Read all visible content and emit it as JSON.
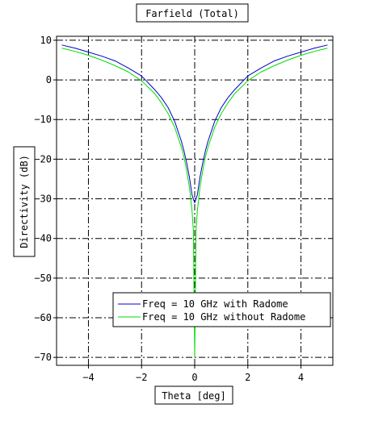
{
  "chart_data": {
    "type": "line",
    "title": "Farfield (Total)",
    "xlabel": "Theta [deg]",
    "ylabel": "Directivity (dB)",
    "xlim": [
      -5.2,
      5.2
    ],
    "ylim": [
      -72,
      11
    ],
    "x_ticks": [
      -4,
      -2,
      0,
      2,
      4
    ],
    "x_tick_labels": [
      "−4",
      "−2",
      "0",
      "2",
      "4"
    ],
    "y_ticks": [
      10,
      0,
      -10,
      -20,
      -30,
      -40,
      -50,
      -60,
      -70
    ],
    "y_tick_labels": [
      "10",
      "0",
      "−10",
      "−20",
      "−30",
      "−40",
      "−50",
      "−60",
      "−70"
    ],
    "grid": true,
    "grid_style": "dash-dot",
    "legend_position": "bottom-right",
    "series": [
      {
        "name": "Freq = 10 GHz with Radome",
        "color": "#0000c8",
        "x": [
          -5,
          -4.5,
          -4,
          -3.5,
          -3,
          -2.5,
          -2,
          -1.5,
          -1.25,
          -1,
          -0.75,
          -0.5,
          -0.4,
          -0.3,
          -0.2,
          -0.1,
          0,
          0.1,
          0.2,
          0.3,
          0.4,
          0.5,
          0.75,
          1,
          1.25,
          1.5,
          2,
          2.5,
          3,
          3.5,
          4,
          4.5,
          5
        ],
        "y": [
          8.8,
          8,
          7,
          6,
          4.8,
          3,
          1,
          -2.5,
          -4.5,
          -7,
          -10.5,
          -15.5,
          -18,
          -21,
          -24.5,
          -29,
          -31,
          -29,
          -24.5,
          -21,
          -18,
          -15.5,
          -10.5,
          -7,
          -4.5,
          -2.5,
          1,
          3,
          4.8,
          6,
          7,
          8,
          8.8
        ]
      },
      {
        "name": "Freq = 10 GHz without Radome",
        "color": "#00dc00",
        "x": [
          -5,
          -4.5,
          -4,
          -3.5,
          -3,
          -2.5,
          -2,
          -1.5,
          -1.25,
          -1,
          -0.75,
          -0.5,
          -0.4,
          -0.3,
          -0.2,
          -0.1,
          -0.05,
          0,
          0.05,
          0.1,
          0.2,
          0.3,
          0.4,
          0.5,
          0.75,
          1,
          1.25,
          1.5,
          2,
          2.5,
          3,
          3.5,
          4,
          4.5,
          5
        ],
        "y": [
          8,
          7.2,
          6.2,
          5,
          3.6,
          2,
          -0.2,
          -3.5,
          -5.8,
          -8.5,
          -12,
          -17,
          -19.5,
          -23,
          -27,
          -33,
          -38,
          -70,
          -38,
          -33,
          -27,
          -23,
          -19.5,
          -17,
          -12,
          -8.5,
          -5.8,
          -3.5,
          -0.2,
          2,
          3.6,
          5,
          6.2,
          7.2,
          8
        ]
      }
    ]
  }
}
